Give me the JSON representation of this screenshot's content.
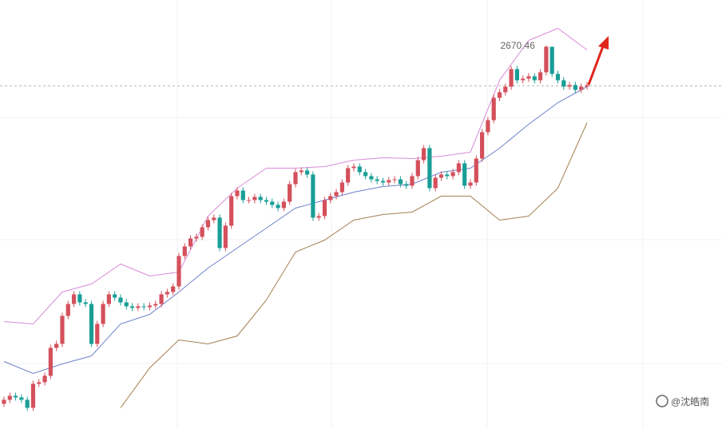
{
  "chart_data": {
    "type": "candlestick",
    "x": [
      0,
      1,
      2,
      3,
      4,
      5,
      6,
      7,
      8,
      9,
      10,
      11,
      12,
      13,
      14,
      15,
      16,
      17,
      18,
      19,
      20,
      21,
      22,
      23,
      24,
      25,
      26,
      27,
      28,
      29,
      30,
      31,
      32,
      33,
      34,
      35,
      36,
      37,
      38,
      39,
      40,
      41,
      42,
      43,
      44,
      45,
      46,
      47,
      48,
      49,
      50,
      51,
      52,
      53,
      54,
      55,
      56,
      57,
      58,
      59,
      60,
      61,
      62,
      63,
      64,
      65,
      66,
      67,
      68,
      69,
      70,
      71,
      72,
      73,
      74,
      75,
      76,
      77,
      78,
      79,
      80,
      81,
      82,
      83,
      84,
      85,
      86,
      87,
      88,
      89,
      90,
      91,
      92,
      93,
      94,
      95,
      96,
      97,
      98,
      99,
      100
    ],
    "open": [
      2222,
      2227,
      2232,
      2230,
      2227,
      2217,
      2247,
      2249,
      2257,
      2292,
      2297,
      2332,
      2347,
      2359,
      2349,
      2347,
      2297,
      2322,
      2347,
      2359,
      2355,
      2349,
      2344,
      2342,
      2344,
      2343,
      2345,
      2347,
      2359,
      2362,
      2369,
      2407,
      2419,
      2429,
      2431,
      2443,
      2452,
      2455,
      2417,
      2445,
      2482,
      2489,
      2477,
      2477,
      2481,
      2477,
      2475,
      2471,
      2467,
      2475,
      2497,
      2512,
      2514,
      2509,
      2455,
      2457,
      2477,
      2482,
      2487,
      2499,
      2517,
      2519,
      2512,
      2507,
      2503,
      2501,
      2499,
      2502,
      2503,
      2497,
      2495,
      2507,
      2527,
      2542,
      2492,
      2505,
      2509,
      2507,
      2512,
      2523,
      2495,
      2499,
      2529,
      2562,
      2577,
      2605,
      2612,
      2619,
      2641,
      2627,
      2629,
      2632,
      2627,
      2637,
      2669,
      2635,
      2627,
      2619,
      2621,
      2615,
      2619
    ],
    "high": [
      2231,
      2236,
      2236,
      2234,
      2231,
      2251,
      2253,
      2261,
      2296,
      2301,
      2336,
      2351,
      2363,
      2363,
      2353,
      2351,
      2326,
      2351,
      2363,
      2363,
      2359,
      2353,
      2348,
      2348,
      2348,
      2349,
      2351,
      2363,
      2366,
      2373,
      2411,
      2423,
      2433,
      2435,
      2447,
      2456,
      2459,
      2459,
      2449,
      2486,
      2493,
      2493,
      2481,
      2485,
      2485,
      2481,
      2479,
      2475,
      2479,
      2501,
      2516,
      2518,
      2518,
      2513,
      2461,
      2481,
      2486,
      2491,
      2503,
      2521,
      2523,
      2523,
      2516,
      2511,
      2507,
      2505,
      2506,
      2507,
      2507,
      2501,
      2511,
      2531,
      2546,
      2546,
      2509,
      2513,
      2513,
      2516,
      2527,
      2527,
      2503,
      2533,
      2566,
      2581,
      2609,
      2616,
      2623,
      2645,
      2645,
      2633,
      2636,
      2636,
      2641,
      2670.46,
      2669,
      2639,
      2631,
      2625,
      2625,
      2623,
      2625
    ],
    "low": [
      2218,
      2223,
      2226,
      2223,
      2213,
      2213,
      2243,
      2245,
      2253,
      2288,
      2293,
      2328,
      2343,
      2345,
      2343,
      2293,
      2293,
      2318,
      2343,
      2351,
      2345,
      2340,
      2338,
      2338,
      2339,
      2339,
      2341,
      2343,
      2355,
      2358,
      2365,
      2403,
      2415,
      2425,
      2427,
      2439,
      2448,
      2413,
      2413,
      2441,
      2478,
      2473,
      2473,
      2473,
      2473,
      2471,
      2467,
      2463,
      2463,
      2471,
      2493,
      2508,
      2505,
      2451,
      2451,
      2453,
      2473,
      2478,
      2483,
      2495,
      2513,
      2508,
      2503,
      2499,
      2497,
      2495,
      2495,
      2498,
      2493,
      2491,
      2491,
      2503,
      2523,
      2488,
      2488,
      2501,
      2503,
      2503,
      2508,
      2491,
      2491,
      2495,
      2525,
      2558,
      2573,
      2601,
      2608,
      2615,
      2623,
      2623,
      2625,
      2623,
      2623,
      2633,
      2631,
      2623,
      2615,
      2615,
      2611,
      2611,
      2615
    ],
    "close": [
      2227,
      2232,
      2230,
      2227,
      2217,
      2247,
      2249,
      2257,
      2292,
      2297,
      2332,
      2347,
      2359,
      2349,
      2347,
      2297,
      2322,
      2347,
      2359,
      2355,
      2349,
      2344,
      2342,
      2344,
      2343,
      2345,
      2347,
      2359,
      2362,
      2369,
      2407,
      2419,
      2429,
      2431,
      2443,
      2452,
      2455,
      2417,
      2445,
      2482,
      2489,
      2477,
      2477,
      2481,
      2477,
      2475,
      2471,
      2467,
      2475,
      2497,
      2512,
      2514,
      2509,
      2455,
      2457,
      2477,
      2482,
      2487,
      2499,
      2517,
      2519,
      2512,
      2507,
      2503,
      2501,
      2499,
      2502,
      2503,
      2497,
      2495,
      2507,
      2527,
      2542,
      2492,
      2505,
      2509,
      2507,
      2512,
      2523,
      2495,
      2499,
      2529,
      2562,
      2577,
      2605,
      2612,
      2619,
      2641,
      2627,
      2629,
      2632,
      2627,
      2637,
      2669,
      2635,
      2627,
      2619,
      2621,
      2615,
      2619,
      2621
    ],
    "up_color": "#d4505c",
    "down_color": "#199e96",
    "bands": [
      {
        "color": "#d88bd8",
        "x": [
          0,
          5,
          10,
          15,
          20,
          25,
          30,
          35,
          40,
          45,
          50,
          55,
          60,
          65,
          70,
          75,
          80,
          85,
          90,
          95,
          100
        ],
        "values": [
          2325,
          2322,
          2362,
          2372,
          2397,
          2382,
          2387,
          2457,
          2492,
          2517,
          2517,
          2519,
          2527,
          2530,
          2529,
          2532,
          2537,
          2627,
          2677,
          2692,
          2665
        ]
      },
      {
        "color": "#6e82cc",
        "x": [
          0,
          5,
          10,
          15,
          20,
          25,
          30,
          35,
          40,
          45,
          50,
          55,
          60,
          65,
          70,
          75,
          80,
          85,
          90,
          95,
          100
        ],
        "values": [
          2275,
          2260,
          2272,
          2282,
          2322,
          2334,
          2362,
          2392,
          2417,
          2442,
          2467,
          2477,
          2487,
          2494,
          2497,
          2512,
          2517,
          2542,
          2572,
          2599,
          2619
        ]
      },
      {
        "color": "#a3804f",
        "x": [
          0,
          5,
          10,
          15,
          20,
          25,
          30,
          35,
          40,
          45,
          50,
          55,
          60,
          65,
          70,
          75,
          80,
          85,
          90,
          95,
          100
        ],
        "values": [
          null,
          null,
          null,
          null,
          2217,
          2267,
          2302,
          2297,
          2307,
          2352,
          2412,
          2427,
          2452,
          2459,
          2462,
          2482,
          2482,
          2452,
          2457,
          2492,
          2574
        ]
      }
    ],
    "current_price": 2620,
    "xlim": [
      -0.68,
      123.15
    ],
    "ylim": [
      2190.46,
      2727.46
    ],
    "watermark": "@沈皓南"
  }
}
